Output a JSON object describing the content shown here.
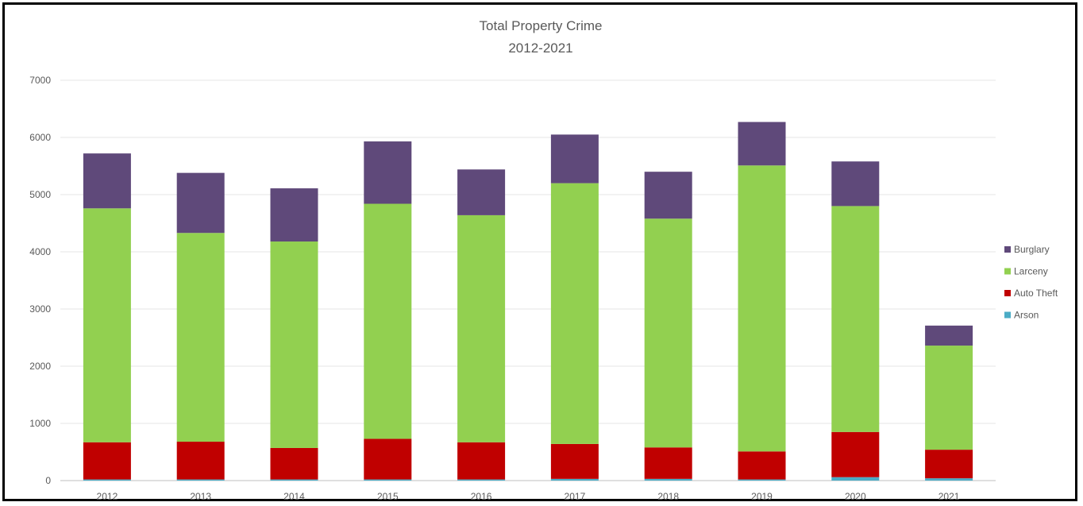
{
  "chart_data": {
    "type": "bar",
    "stacked": true,
    "title": "Total Property Crime",
    "subtitle": "2012-2021",
    "xlabel": "",
    "ylabel": "",
    "categories": [
      "2012",
      "2013",
      "2014",
      "2015",
      "2016",
      "2017",
      "2018",
      "2019",
      "2020",
      "2021"
    ],
    "ylim": [
      0,
      7000
    ],
    "yticks": [
      0,
      1000,
      2000,
      3000,
      4000,
      5000,
      6000,
      7000
    ],
    "grid": true,
    "legend_position": "right",
    "series": [
      {
        "name": "Arson",
        "color": "#4BACC6",
        "values": [
          20,
          20,
          20,
          20,
          20,
          30,
          30,
          20,
          60,
          40
        ]
      },
      {
        "name": "Auto Theft",
        "color": "#C00000",
        "values": [
          650,
          660,
          550,
          710,
          650,
          610,
          550,
          490,
          790,
          500
        ]
      },
      {
        "name": "Larceny",
        "color": "#92D050",
        "values": [
          4090,
          3650,
          3610,
          4110,
          3970,
          4560,
          4000,
          5000,
          3950,
          1820
        ]
      },
      {
        "name": "Burglary",
        "color": "#5F497A",
        "values": [
          960,
          1050,
          930,
          1090,
          800,
          850,
          820,
          760,
          780,
          350
        ]
      }
    ],
    "legend_order": [
      "Burglary",
      "Larceny",
      "Auto Theft",
      "Arson"
    ]
  }
}
